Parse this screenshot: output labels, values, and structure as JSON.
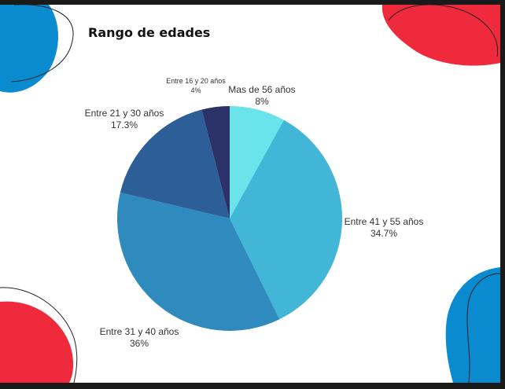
{
  "chart_data": {
    "type": "pie",
    "title": "Rango de edades",
    "slices": [
      {
        "label": "Mas de 56 años",
        "value": 8,
        "pct_label": "8%",
        "color": "#6be3ea"
      },
      {
        "label": "Entre 41 y 55 años",
        "value": 34.7,
        "pct_label": "34.7%",
        "color": "#41b6d6"
      },
      {
        "label": "Entre 31 y 40 años",
        "value": 36,
        "pct_label": "36%",
        "color": "#2f8bbd"
      },
      {
        "label": "Entre 21 y 30 años",
        "value": 17.3,
        "pct_label": "17.3%",
        "color": "#2c5e97"
      },
      {
        "label": "Entre 16 y 20 años",
        "value": 4,
        "pct_label": "4%",
        "color": "#2a3268"
      }
    ]
  },
  "colors": {
    "blob_red": "#ef2a3c",
    "blob_blue": "#0a8bd0",
    "background": "#ffffff"
  }
}
